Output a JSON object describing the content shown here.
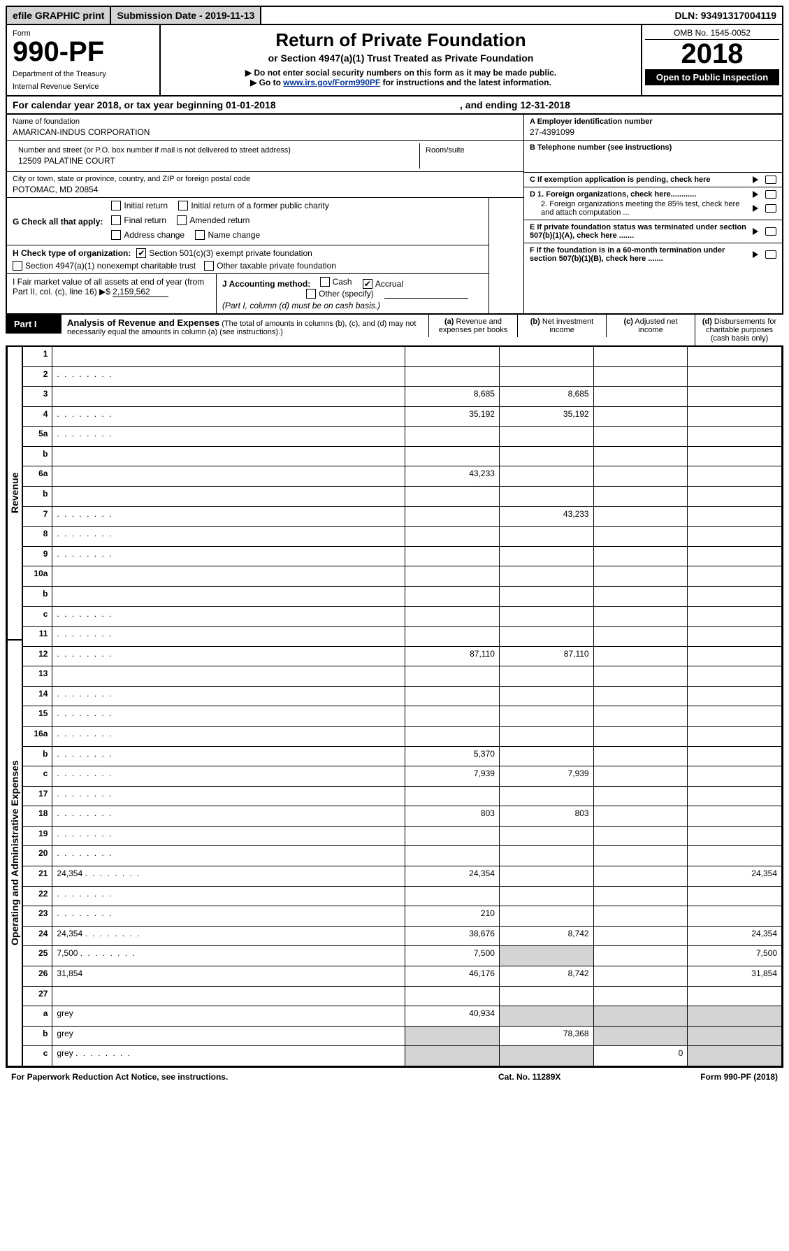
{
  "topbar": {
    "efile": "efile GRAPHIC print",
    "subdate": "Submission Date - 2019-11-13",
    "dln": "DLN: 93491317004119"
  },
  "header": {
    "form_label": "Form",
    "form_number": "990-PF",
    "dept": "Department of the Treasury",
    "irs": "Internal Revenue Service",
    "title": "Return of Private Foundation",
    "subtitle1": "or Section 4947(a)(1) Trust Treated as Private Foundation",
    "subtitle2": "▶ Do not enter social security numbers on this form as it may be made public.",
    "subtitle3_a": "▶ Go to ",
    "subtitle3_link": "www.irs.gov/Form990PF",
    "subtitle3_b": " for instructions and the latest information.",
    "omb": "OMB No. 1545-0052",
    "year": "2018",
    "open": "Open to Public Inspection"
  },
  "calrow": {
    "text1": "For calendar year 2018, or tax year beginning 01-01-2018",
    "text2": ", and ending 12-31-2018"
  },
  "id": {
    "name_lbl": "Name of foundation",
    "name_val": "AMARICAN-INDUS CORPORATION",
    "addr_lbl": "Number and street (or P.O. box number if mail is not delivered to street address)",
    "addr_val": "12509 PALATINE COURT",
    "room_lbl": "Room/suite",
    "city_lbl": "City or town, state or province, country, and ZIP or foreign postal code",
    "city_val": "POTOMAC, MD  20854",
    "ein_lbl": "A Employer identification number",
    "ein_val": "27-4391099",
    "tel_lbl": "B Telephone number (see instructions)",
    "c_lbl": "C If exemption application is pending, check here",
    "d1_lbl": "D 1. Foreign organizations, check here............",
    "d2_lbl": "2. Foreign organizations meeting the 85% test, check here and attach computation ...",
    "e_lbl": "E  If private foundation status was terminated under section 507(b)(1)(A), check here .......",
    "f_lbl": "F  If the foundation is in a 60-month termination under section 507(b)(1)(B), check here .......",
    "g_lbl": "G Check all that apply:",
    "g_initial": "Initial return",
    "g_initial_former": "Initial return of a former public charity",
    "g_final": "Final return",
    "g_amended": "Amended return",
    "g_address": "Address change",
    "g_name": "Name change",
    "h_lbl": "H Check type of organization:",
    "h_501c3": "Section 501(c)(3) exempt private foundation",
    "h_4947": "Section 4947(a)(1) nonexempt charitable trust",
    "h_other": "Other taxable private foundation",
    "i_lbl": "I Fair market value of all assets at end of year (from Part II, col. (c), line 16) ▶$",
    "i_val": "2,159,562",
    "j_lbl": "J Accounting method:",
    "j_cash": "Cash",
    "j_accrual": "Accrual",
    "j_other": "Other (specify)",
    "j_note": "(Part I, column (d) must be on cash basis.)"
  },
  "part1": {
    "label": "Part I",
    "title": "Analysis of Revenue and Expenses",
    "note": "(The total of amounts in columns (b), (c), and (d) may not necessarily equal the amounts in column (a) (see instructions).)",
    "col_a": "Revenue and expenses per books",
    "col_b": "Net investment income",
    "col_c": "Adjusted net income",
    "col_d": "Disbursements for charitable purposes (cash basis only)",
    "col_a_pre": "(a)",
    "col_b_pre": "(b)",
    "col_c_pre": "(c)",
    "col_d_pre": "(d)"
  },
  "sidelabels": {
    "revenue": "Revenue",
    "expenses": "Operating and Administrative Expenses"
  },
  "rows": [
    {
      "n": "1",
      "d": "",
      "a": "",
      "b": "",
      "c": ""
    },
    {
      "n": "2",
      "d": "",
      "a": "",
      "b": "",
      "c": "",
      "dots": true
    },
    {
      "n": "3",
      "d": "",
      "a": "8,685",
      "b": "8,685",
      "c": ""
    },
    {
      "n": "4",
      "d": "",
      "a": "35,192",
      "b": "35,192",
      "c": "",
      "dots": true
    },
    {
      "n": "5a",
      "d": "",
      "a": "",
      "b": "",
      "c": "",
      "dots": true
    },
    {
      "n": "b",
      "d": "",
      "a": "",
      "b": "",
      "c": ""
    },
    {
      "n": "6a",
      "d": "",
      "a": "43,233",
      "b": "",
      "c": ""
    },
    {
      "n": "b",
      "d": "",
      "a": "",
      "b": "",
      "c": ""
    },
    {
      "n": "7",
      "d": "",
      "a": "",
      "b": "43,233",
      "c": "",
      "dots": true
    },
    {
      "n": "8",
      "d": "",
      "a": "",
      "b": "",
      "c": "",
      "dots": true
    },
    {
      "n": "9",
      "d": "",
      "a": "",
      "b": "",
      "c": "",
      "dots": true
    },
    {
      "n": "10a",
      "d": "",
      "a": "",
      "b": "",
      "c": ""
    },
    {
      "n": "b",
      "d": "",
      "a": "",
      "b": "",
      "c": ""
    },
    {
      "n": "c",
      "d": "",
      "a": "",
      "b": "",
      "c": "",
      "dots": true
    },
    {
      "n": "11",
      "d": "",
      "a": "",
      "b": "",
      "c": "",
      "dots": true
    },
    {
      "n": "12",
      "d": "",
      "a": "87,110",
      "b": "87,110",
      "c": "",
      "dots": true
    },
    {
      "n": "13",
      "d": "",
      "a": "",
      "b": "",
      "c": ""
    },
    {
      "n": "14",
      "d": "",
      "a": "",
      "b": "",
      "c": "",
      "dots": true
    },
    {
      "n": "15",
      "d": "",
      "a": "",
      "b": "",
      "c": "",
      "dots": true
    },
    {
      "n": "16a",
      "d": "",
      "a": "",
      "b": "",
      "c": "",
      "dots": true
    },
    {
      "n": "b",
      "d": "",
      "a": "5,370",
      "b": "",
      "c": "",
      "dots": true
    },
    {
      "n": "c",
      "d": "",
      "a": "7,939",
      "b": "7,939",
      "c": "",
      "dots": true
    },
    {
      "n": "17",
      "d": "",
      "a": "",
      "b": "",
      "c": "",
      "dots": true
    },
    {
      "n": "18",
      "d": "",
      "a": "803",
      "b": "803",
      "c": "",
      "dots": true
    },
    {
      "n": "19",
      "d": "",
      "a": "",
      "b": "",
      "c": "",
      "dots": true
    },
    {
      "n": "20",
      "d": "",
      "a": "",
      "b": "",
      "c": "",
      "dots": true
    },
    {
      "n": "21",
      "d": "24,354",
      "a": "24,354",
      "b": "",
      "c": "",
      "dots": true
    },
    {
      "n": "22",
      "d": "",
      "a": "",
      "b": "",
      "c": "",
      "dots": true
    },
    {
      "n": "23",
      "d": "",
      "a": "210",
      "b": "",
      "c": "",
      "dots": true
    },
    {
      "n": "24",
      "d": "24,354",
      "a": "38,676",
      "b": "8,742",
      "c": "",
      "dots": true
    },
    {
      "n": "25",
      "d": "7,500",
      "a": "7,500",
      "b": "grey",
      "c": "",
      "dots": true
    },
    {
      "n": "26",
      "d": "31,854",
      "a": "46,176",
      "b": "8,742",
      "c": ""
    },
    {
      "n": "27",
      "d": "",
      "a": "",
      "b": "",
      "c": ""
    },
    {
      "n": "a",
      "d": "grey",
      "a": "40,934",
      "b": "grey",
      "c": "grey"
    },
    {
      "n": "b",
      "d": "grey",
      "a": "grey",
      "b": "78,368",
      "c": "grey"
    },
    {
      "n": "c",
      "d": "grey",
      "a": "grey",
      "b": "grey",
      "c": "0",
      "dots": true
    }
  ],
  "footer": {
    "f1": "For Paperwork Reduction Act Notice, see instructions.",
    "f2": "Cat. No. 11289X",
    "f3": "Form 990-PF (2018)"
  },
  "colors": {
    "greybg": "#d4d4d4",
    "link": "#003399"
  }
}
